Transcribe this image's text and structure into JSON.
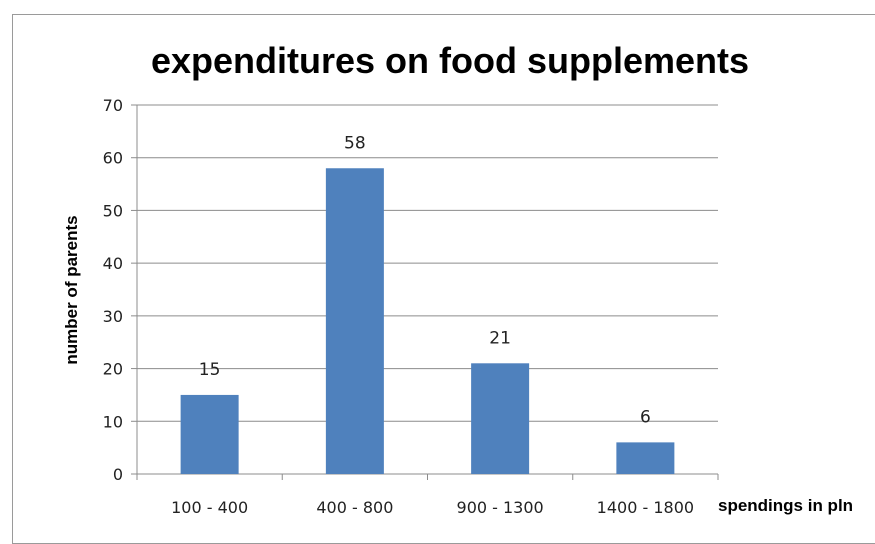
{
  "chart_data": {
    "type": "bar",
    "title": "expenditures on food supplements",
    "xlabel": "spendings in pln",
    "ylabel": "number of parents",
    "categories": [
      "100 - 400",
      "400 - 800",
      "900 - 1300",
      "1400 - 1800"
    ],
    "values": [
      15,
      58,
      21,
      6
    ],
    "ylim": [
      0,
      70
    ],
    "yticks": [
      0,
      10,
      20,
      30,
      40,
      50,
      60,
      70
    ],
    "grid": true,
    "bar_color": "#4f81bd",
    "data_labels": true
  }
}
